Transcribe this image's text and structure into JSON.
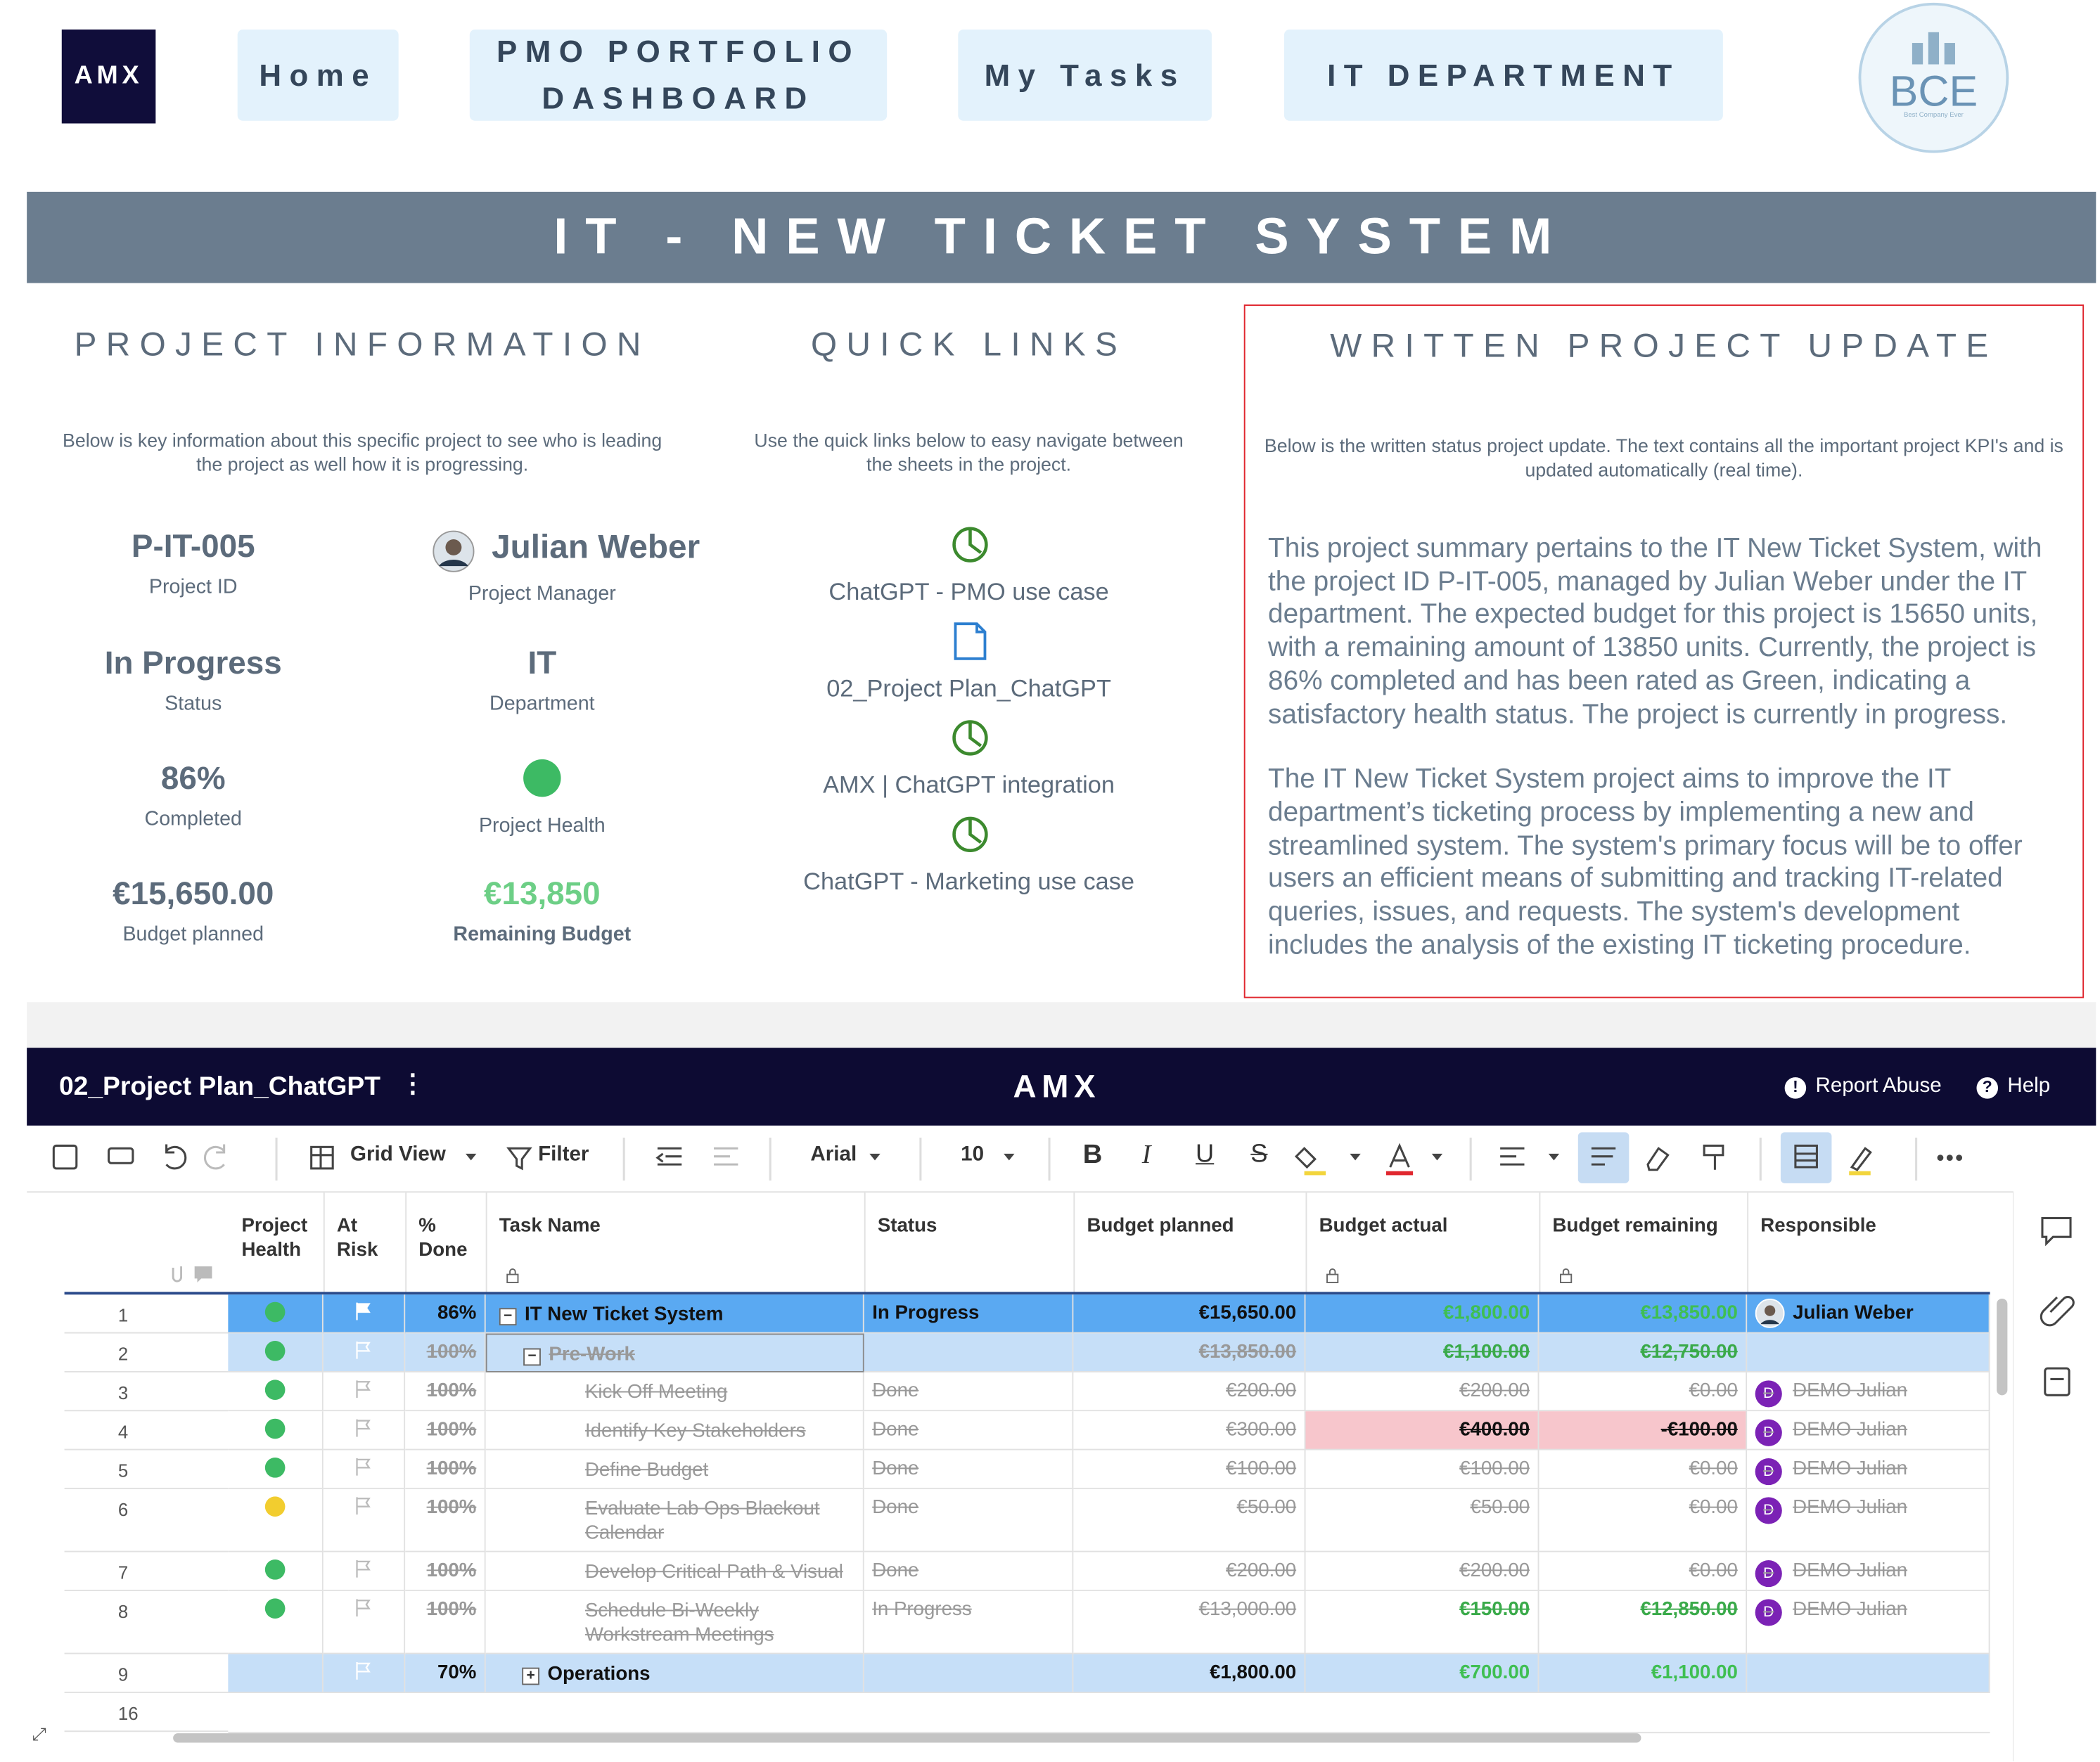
{
  "nav": {
    "logo": "AMX",
    "tabs": [
      "Home",
      "PMO PORTFOLIO DASHBOARD",
      "My Tasks",
      "IT DEPARTMENT"
    ],
    "brand": "BCE",
    "brand_tagline": "Best Company Ever"
  },
  "banner": "IT - NEW TICKET SYSTEM",
  "project_information": {
    "heading": "PROJECT INFORMATION",
    "intro": "Below is key information about this specific project to see who is leading the project as well how it is progressing.",
    "fields": [
      {
        "value": "P-IT-005",
        "label": "Project ID"
      },
      {
        "value": "Julian Weber",
        "label": "Project Manager"
      },
      {
        "value": "In Progress",
        "label": "Status"
      },
      {
        "value": "IT",
        "label": "Department"
      },
      {
        "value": "86%",
        "label": "Completed"
      },
      {
        "health": "green",
        "label": "Project Health"
      },
      {
        "value": "€15,650.00",
        "label": "Budget planned"
      },
      {
        "value": "€13,850",
        "label": "Remaining Budget"
      }
    ]
  },
  "quick_links": {
    "heading": "QUICK LINKS",
    "intro": "Use the quick links below to easy navigate between the sheets in the project.",
    "links": [
      {
        "icon": "dashboard",
        "label": "ChatGPT - PMO use case"
      },
      {
        "icon": "sheet",
        "label": "02_Project Plan_ChatGPT"
      },
      {
        "icon": "dashboard",
        "label": "AMX | ChatGPT integration"
      },
      {
        "icon": "dashboard",
        "label": "ChatGPT - Marketing use case"
      }
    ]
  },
  "written_update": {
    "heading": "WRITTEN PROJECT UPDATE",
    "intro": "Below is the written status project update. The text contains all the important project KPI's and is updated automatically (real time).",
    "paragraphs": [
      "This project summary pertains to the IT New Ticket System, with the project ID P-IT-005, managed by Julian Weber under the IT department. The expected budget for this project is 15650 units, with a remaining amount of 13850 units. Currently, the project is 86% completed and has been rated as Green, indicating a satisfactory health status. The project is currently in progress.",
      "The IT New Ticket System project aims to improve the IT department’s ticketing process by implementing a new and streamlined system. The system's primary focus will be to offer users an efficient means of submitting and tracking IT-related queries, issues, and requests. The system's development includes the analysis of the existing IT ticketing procedure."
    ]
  },
  "sheet": {
    "title": "02_Project Plan_ChatGPT",
    "brand": "AMX",
    "links": [
      "Report Abuse",
      "Help"
    ],
    "toolbar": {
      "view": "Grid View",
      "filter": "Filter",
      "font": "Arial",
      "size": "10",
      "format": [
        "B",
        "I",
        "U",
        "S"
      ]
    },
    "columns": [
      "Project Health",
      "At Risk",
      "% Done",
      "Task Name",
      "Status",
      "Budget planned",
      "Budget actual",
      "Budget remaining",
      "Responsible"
    ],
    "rows": [
      {
        "num": "1",
        "health": "green",
        "done": "86%",
        "task": "IT New Ticket System",
        "status": "In Progress",
        "planned": "€15,650.00",
        "actual": "€1,800.00",
        "remaining": "€13,850.00",
        "responsible": "Julian Weber",
        "style": "selected",
        "level": 0,
        "toggle": "−",
        "green_budget": true
      },
      {
        "num": "2",
        "health": "green",
        "done": "100%",
        "task": "Pre-Work",
        "status": null,
        "planned": "€13,850.00",
        "actual": "€1,100.00",
        "remaining": "€12,750.00",
        "responsible": null,
        "style": "section",
        "struck": true,
        "level": 1,
        "toggle": "−",
        "green_budget": true
      },
      {
        "num": "3",
        "health": "green",
        "done": "100%",
        "task": "Kick Off Meeting",
        "status": "Done",
        "planned": "€200.00",
        "actual": "€200.00",
        "remaining": "€0.00",
        "initial": "D",
        "responsible": "DEMO Julian",
        "struck": true,
        "level": 2
      },
      {
        "num": "4",
        "health": "green",
        "done": "100%",
        "task": "Identify Key Stakeholders",
        "status": "Done",
        "planned": "€300.00",
        "actual": "€400.00",
        "remaining": "-€100.00",
        "initial": "D",
        "responsible": "DEMO Julian",
        "struck": true,
        "level": 2,
        "alert": true
      },
      {
        "num": "5",
        "health": "green",
        "done": "100%",
        "task": "Define Budget",
        "status": "Done",
        "planned": "€100.00",
        "actual": "€100.00",
        "remaining": "€0.00",
        "initial": "D",
        "responsible": "DEMO Julian",
        "struck": true,
        "level": 2
      },
      {
        "num": "6",
        "health": "yellow",
        "done": "100%",
        "task": "Evaluate Lab Ops Blackout Calendar",
        "status": "Done",
        "planned": "€50.00",
        "actual": "€50.00",
        "remaining": "€0.00",
        "initial": "D",
        "responsible": "DEMO Julian",
        "struck": true,
        "level": 2,
        "tall": true
      },
      {
        "num": "7",
        "health": "green",
        "done": "100%",
        "task": "Develop Critical Path & Visual",
        "status": "Done",
        "planned": "€200.00",
        "actual": "€200.00",
        "remaining": "€0.00",
        "initial": "D",
        "responsible": "DEMO Julian",
        "struck": true,
        "level": 2
      },
      {
        "num": "8",
        "health": "green",
        "done": "100%",
        "task": "Schedule Bi-Weekly Workstream Meetings",
        "status": "In Progress",
        "planned": "€13,000.00",
        "actual": "€150.00",
        "remaining": "€12,850.00",
        "initial": "D",
        "responsible": "DEMO Julian",
        "struck": true,
        "level": 2,
        "tall": true,
        "green_budget": true
      },
      {
        "num": "9",
        "health": null,
        "done": "70%",
        "task": "Operations",
        "status": null,
        "planned": "€1,800.00",
        "actual": "€700.00",
        "remaining": "€1,100.00",
        "responsible": null,
        "style": "section",
        "level": 1,
        "toggle": "+",
        "green_budget": true
      },
      {
        "num": "16",
        "empty": true
      }
    ]
  }
}
